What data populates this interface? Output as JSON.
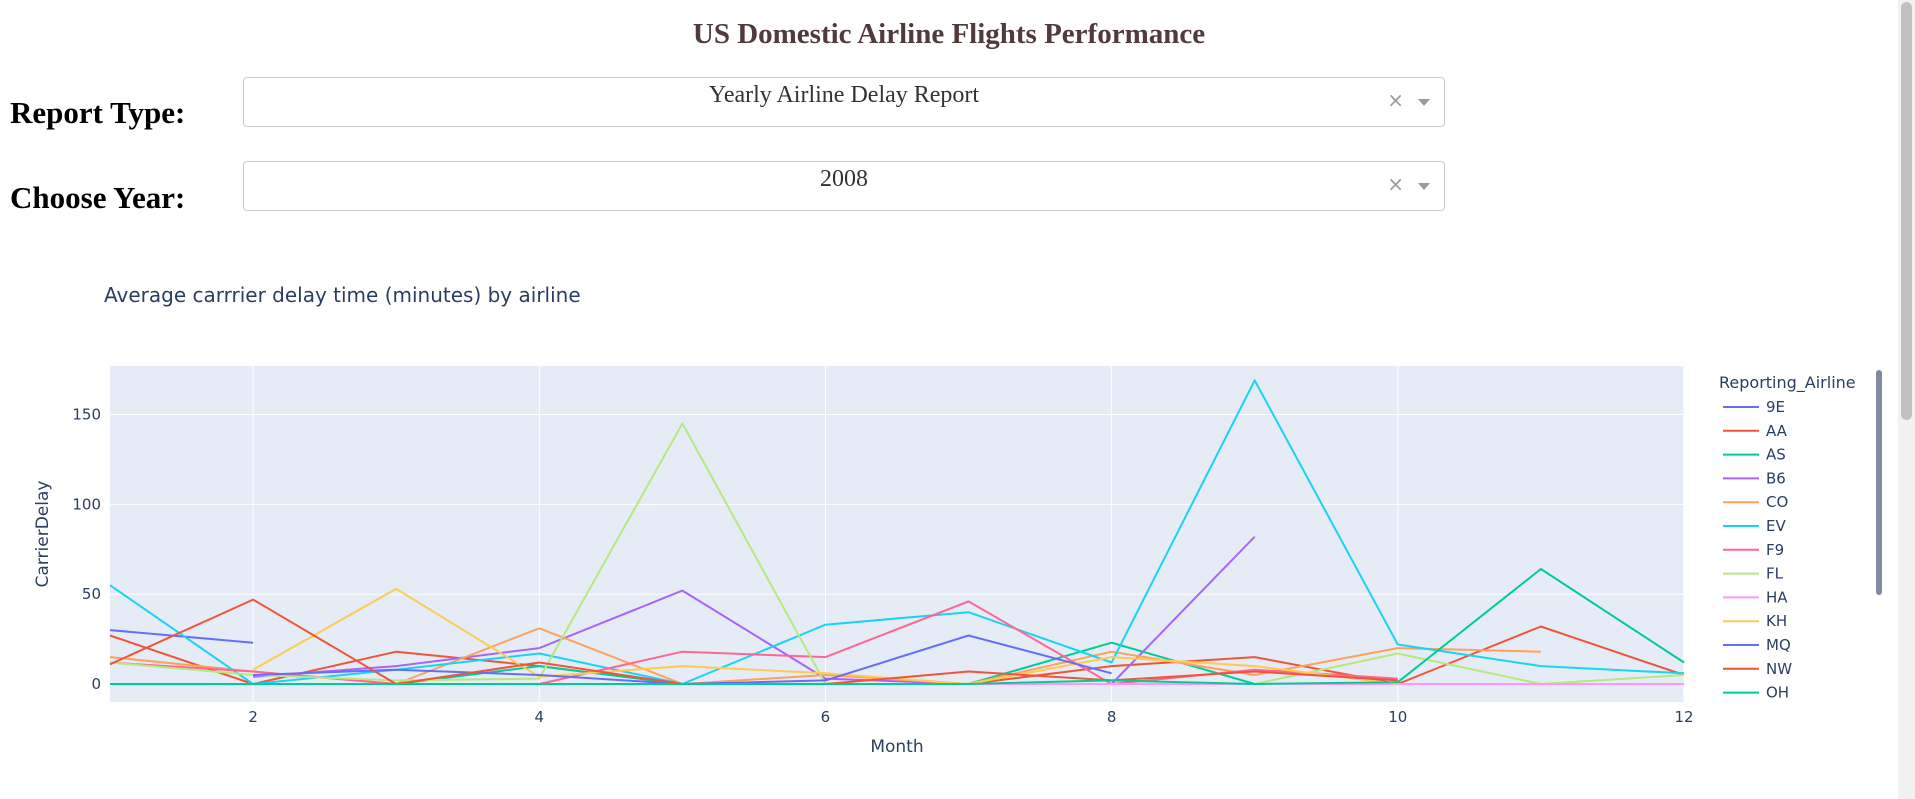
{
  "header": {
    "title": "US Domestic Airline Flights Performance"
  },
  "controls": {
    "report_type": {
      "label": "Report Type:",
      "value": "Yearly Airline Delay Report",
      "clear": "×"
    },
    "year": {
      "label": "Choose Year:",
      "value": "2008",
      "clear": "×"
    }
  },
  "colors": {
    "plot_bg": "#E5ECF6",
    "title_text": "#503A3A",
    "axis_text": "#2a3f5f"
  },
  "chart_data": {
    "type": "line",
    "title": "Average carrrier delay time (minutes) by airline",
    "xlabel": "Month",
    "ylabel": "CarrierDelay",
    "xlim": [
      1,
      12
    ],
    "ylim": [
      -10,
      177
    ],
    "xticks": [
      2,
      4,
      6,
      8,
      10,
      12
    ],
    "yticks": [
      0,
      50,
      100,
      150
    ],
    "grid": true,
    "legend": {
      "title": "Reporting_Airline",
      "placement": "right"
    },
    "series": [
      {
        "name": "9E",
        "color": "#636EFA",
        "points": [
          [
            1,
            30
          ],
          [
            2,
            23
          ]
        ]
      },
      {
        "name": "AA",
        "color": "#EF553B",
        "points": [
          [
            1,
            27
          ],
          [
            2,
            0
          ],
          [
            3,
            18
          ],
          [
            4,
            10
          ],
          [
            5,
            0
          ],
          [
            6,
            0
          ],
          [
            7,
            0
          ],
          [
            8,
            10
          ],
          [
            9,
            15
          ],
          [
            10,
            0
          ],
          [
            11,
            32
          ],
          [
            12,
            5
          ]
        ]
      },
      {
        "name": "AS",
        "color": "#00CC96",
        "points": [
          [
            2,
            0
          ],
          [
            3,
            0
          ],
          [
            4,
            10
          ],
          [
            5,
            0
          ],
          [
            6,
            0
          ],
          [
            7,
            0
          ],
          [
            8,
            23
          ],
          [
            9,
            0
          ]
        ]
      },
      {
        "name": "B6",
        "color": "#AB63FA",
        "points": [
          [
            2,
            4
          ],
          [
            3,
            10
          ],
          [
            4,
            20
          ],
          [
            5,
            52
          ],
          [
            6,
            3
          ],
          [
            7,
            0
          ],
          [
            8,
            0
          ],
          [
            9,
            82
          ]
        ]
      },
      {
        "name": "CO",
        "color": "#FFA15A",
        "points": [
          [
            1,
            15
          ],
          [
            2,
            7
          ],
          [
            3,
            0
          ],
          [
            4,
            31
          ],
          [
            5,
            0
          ],
          [
            6,
            5
          ],
          [
            7,
            0
          ],
          [
            8,
            18
          ],
          [
            9,
            5
          ],
          [
            10,
            20
          ],
          [
            11,
            18
          ]
        ]
      },
      {
        "name": "EV",
        "color": "#19D3F3",
        "points": [
          [
            1,
            55
          ],
          [
            2,
            0
          ],
          [
            3,
            8
          ],
          [
            4,
            17
          ],
          [
            5,
            0
          ],
          [
            6,
            33
          ],
          [
            7,
            40
          ],
          [
            8,
            12
          ],
          [
            9,
            169
          ],
          [
            10,
            22
          ],
          [
            11,
            10
          ],
          [
            12,
            6
          ]
        ]
      },
      {
        "name": "F9",
        "color": "#FF6692",
        "points": [
          [
            1,
            12
          ],
          [
            2,
            7
          ],
          [
            3,
            0
          ],
          [
            4,
            0
          ],
          [
            5,
            18
          ],
          [
            6,
            15
          ],
          [
            7,
            46
          ],
          [
            8,
            0
          ],
          [
            9,
            8
          ],
          [
            10,
            3
          ]
        ]
      },
      {
        "name": "FL",
        "color": "#B6E880",
        "points": [
          [
            1,
            12
          ],
          [
            2,
            5
          ],
          [
            3,
            2
          ],
          [
            4,
            3
          ],
          [
            5,
            145
          ],
          [
            6,
            0
          ],
          [
            7,
            0
          ],
          [
            8,
            0
          ],
          [
            9,
            0
          ],
          [
            10,
            17
          ],
          [
            11,
            0
          ],
          [
            12,
            5
          ]
        ]
      },
      {
        "name": "HA",
        "color": "#FF97FF",
        "points": [
          [
            1,
            0
          ],
          [
            2,
            0
          ],
          [
            3,
            0
          ],
          [
            4,
            0
          ],
          [
            5,
            0
          ],
          [
            6,
            0
          ],
          [
            7,
            0
          ],
          [
            8,
            0
          ],
          [
            9,
            0
          ],
          [
            10,
            0
          ],
          [
            11,
            0
          ],
          [
            12,
            0
          ]
        ]
      },
      {
        "name": "KH",
        "color": "#FECB52",
        "points": [
          [
            2,
            8
          ],
          [
            3,
            53
          ],
          [
            4,
            4
          ],
          [
            5,
            10
          ],
          [
            6,
            6
          ],
          [
            7,
            0
          ],
          [
            8,
            15
          ],
          [
            9,
            10
          ],
          [
            10,
            0
          ]
        ]
      },
      {
        "name": "MQ",
        "color": "#636EFA",
        "points": [
          [
            2,
            5
          ],
          [
            3,
            8
          ],
          [
            4,
            5
          ],
          [
            5,
            0
          ],
          [
            6,
            2
          ],
          [
            7,
            27
          ],
          [
            8,
            6
          ]
        ]
      },
      {
        "name": "NW",
        "color": "#EF553B",
        "points": [
          [
            1,
            11
          ],
          [
            2,
            47
          ],
          [
            3,
            0
          ],
          [
            4,
            12
          ],
          [
            5,
            0
          ],
          [
            6,
            0
          ],
          [
            7,
            7
          ],
          [
            8,
            2
          ],
          [
            9,
            7
          ],
          [
            10,
            2
          ]
        ]
      },
      {
        "name": "OH",
        "color": "#00CC96",
        "points": [
          [
            1,
            0
          ],
          [
            2,
            0
          ],
          [
            3,
            0
          ],
          [
            4,
            0
          ],
          [
            5,
            0
          ],
          [
            6,
            0
          ],
          [
            7,
            0
          ],
          [
            8,
            2
          ],
          [
            9,
            0
          ],
          [
            10,
            1
          ],
          [
            11,
            64
          ],
          [
            12,
            12
          ]
        ]
      }
    ]
  }
}
